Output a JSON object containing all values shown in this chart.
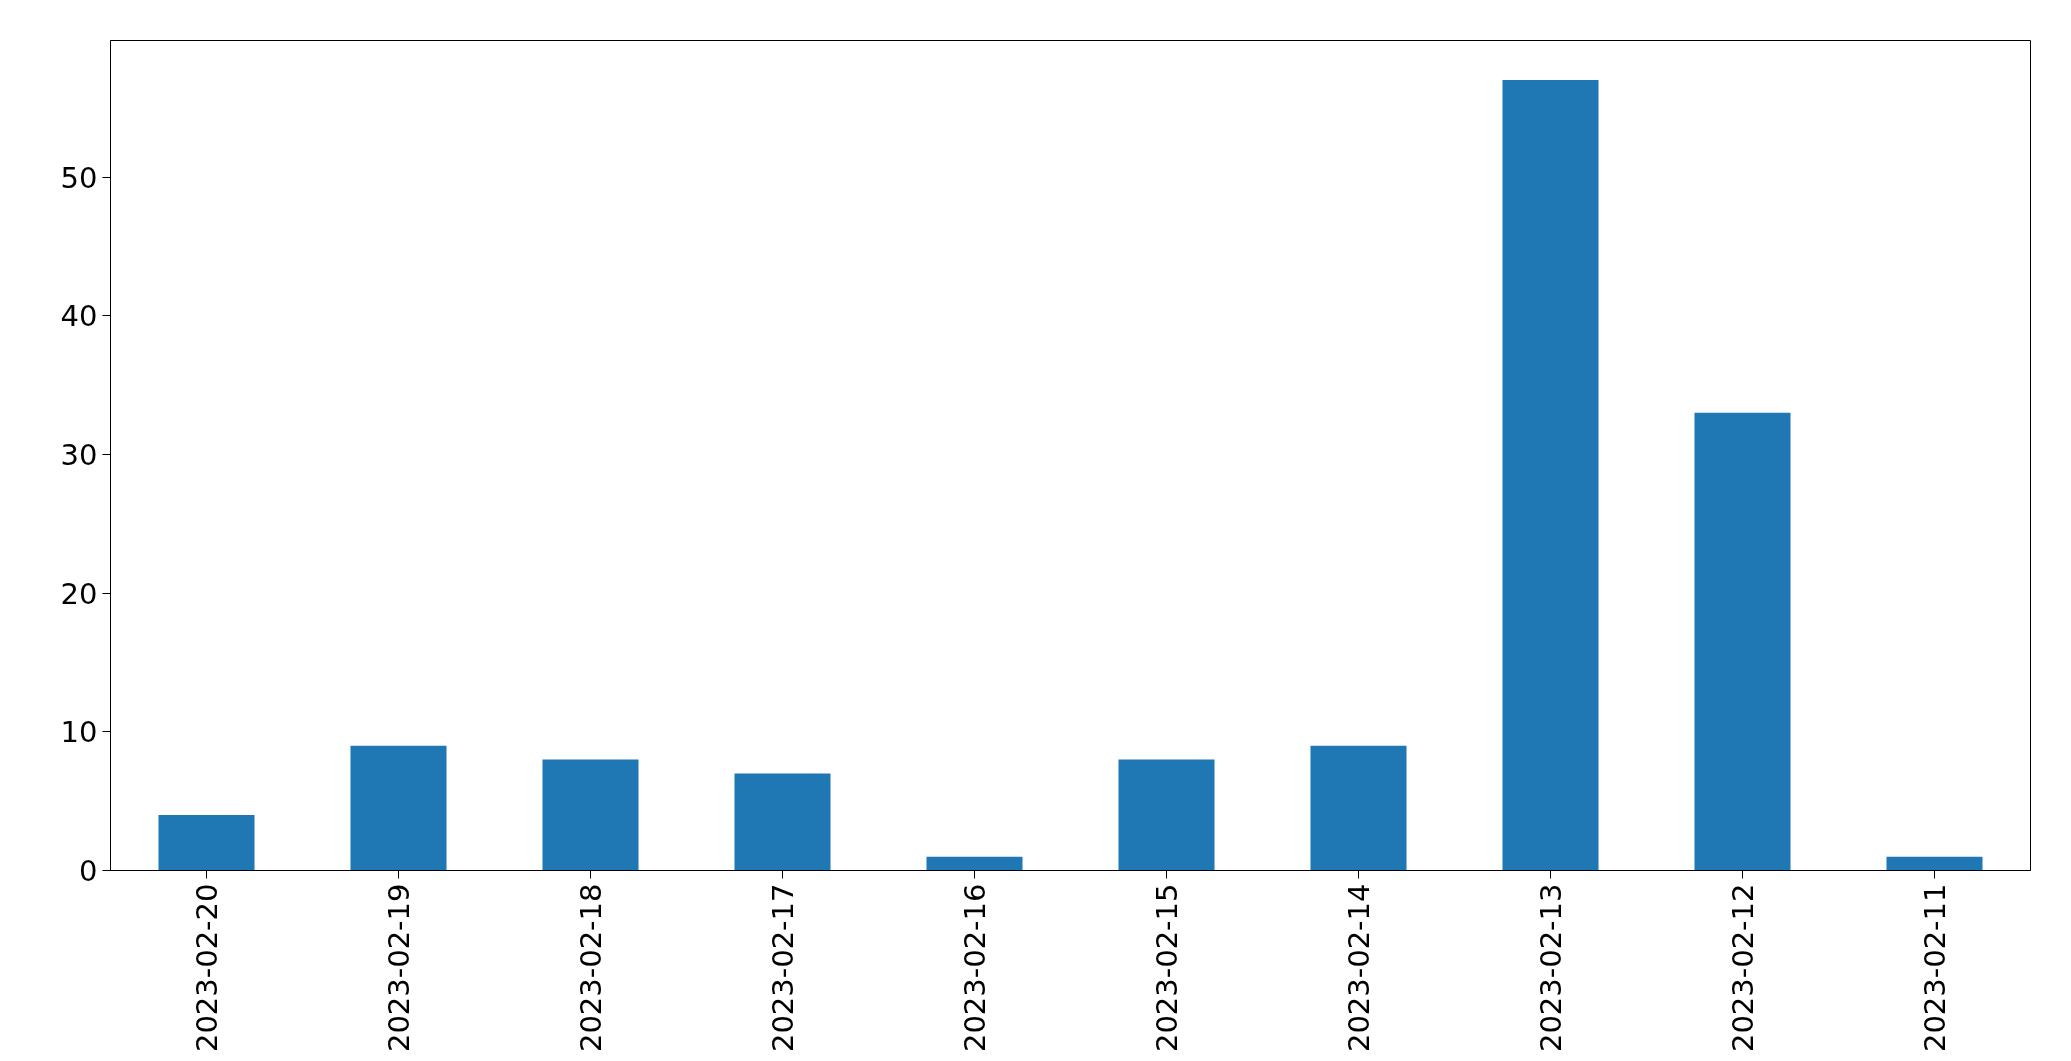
{
  "chart_data": {
    "type": "bar",
    "categories": [
      "2023-02-20",
      "2023-02-19",
      "2023-02-18",
      "2023-02-17",
      "2023-02-16",
      "2023-02-15",
      "2023-02-14",
      "2023-02-13",
      "2023-02-12",
      "2023-02-11"
    ],
    "values": [
      4,
      9,
      8,
      7,
      1,
      8,
      9,
      57,
      33,
      1
    ],
    "color": "#1f77b4",
    "ylim": [
      0,
      59.85
    ],
    "yticks": [
      0,
      10,
      20,
      30,
      40,
      50
    ],
    "grid": false
  }
}
